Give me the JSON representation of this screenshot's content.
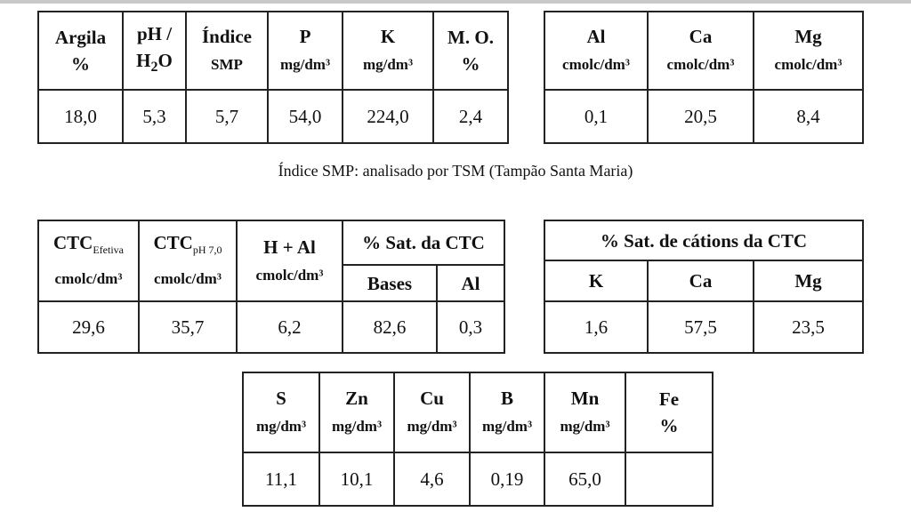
{
  "table1": {
    "headers": [
      {
        "name": "Argila",
        "unit": "%"
      },
      {
        "name": "pH /",
        "unit": "H",
        "sub": "2",
        "unit2": "O"
      },
      {
        "name": "Índice",
        "unit": "SMP"
      },
      {
        "name": "P",
        "unit": "mg/dm³"
      },
      {
        "name": "K",
        "unit": "mg/dm³"
      },
      {
        "name": "M. O.",
        "unit": "%"
      }
    ],
    "values": [
      "18,0",
      "5,3",
      "5,7",
      "54,0",
      "224,0",
      "2,4"
    ]
  },
  "table2": {
    "headers": [
      {
        "name": "Al",
        "unit": "cmolc/dm³"
      },
      {
        "name": "Ca",
        "unit": "cmolc/dm³"
      },
      {
        "name": "Mg",
        "unit": "cmolc/dm³"
      }
    ],
    "values": [
      "0,1",
      "20,5",
      "8,4"
    ]
  },
  "caption": "Índice SMP: analisado por TSM (Tampão Santa Maria)",
  "table3": {
    "headers": [
      {
        "name": "CTC",
        "sub": "Efetiva",
        "unit": "cmolc/dm³"
      },
      {
        "name": "CTC",
        "sub": "pH 7,0",
        "unit": "cmolc/dm³"
      },
      {
        "name": "H + Al",
        "unit": "cmolc/dm³"
      }
    ],
    "group": "% Sat. da CTC",
    "group_cols": [
      "Bases",
      "Al"
    ],
    "values": [
      "29,6",
      "35,7",
      "6,2",
      "82,6",
      "0,3"
    ]
  },
  "table4": {
    "title": "% Sat. de cátions da CTC",
    "headers": [
      "K",
      "Ca",
      "Mg"
    ],
    "values": [
      "1,6",
      "57,5",
      "23,5"
    ]
  },
  "table5": {
    "headers": [
      {
        "name": "S",
        "unit": "mg/dm³"
      },
      {
        "name": "Zn",
        "unit": "mg/dm³"
      },
      {
        "name": "Cu",
        "unit": "mg/dm³"
      },
      {
        "name": "B",
        "unit": "mg/dm³"
      },
      {
        "name": "Mn",
        "unit": "mg/dm³"
      },
      {
        "name": "Fe",
        "unit": "%"
      }
    ],
    "values": [
      "11,1",
      "10,1",
      "4,6",
      "0,19",
      "65,0",
      ""
    ]
  }
}
